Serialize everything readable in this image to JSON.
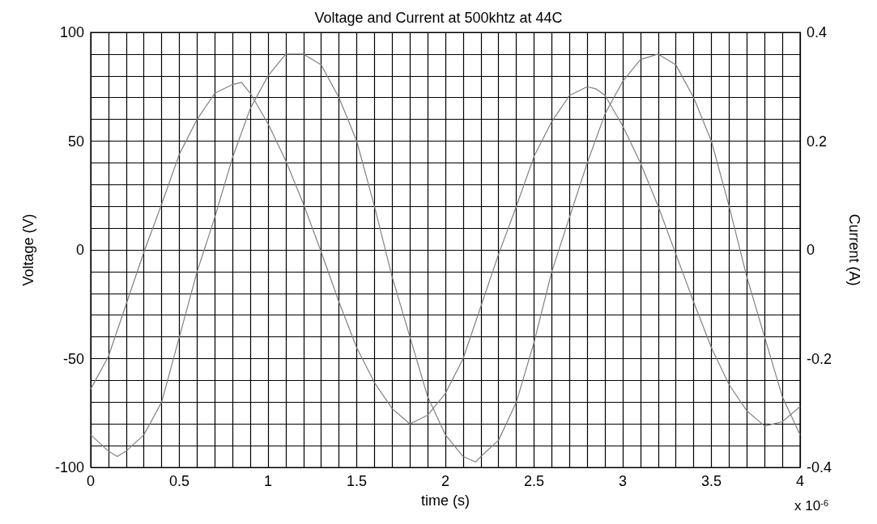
{
  "chart_data": {
    "type": "line",
    "title": "Voltage and Current at 500khtz at 44C",
    "xlabel": "time (s)",
    "ylabel": "Voltage (V)",
    "y2label": "Current (A)",
    "annotations": [
      "x 10$^{-6}$"
    ],
    "x": [
      0,
      0.1,
      0.2,
      0.3,
      0.4,
      0.5,
      0.6,
      0.7,
      0.8,
      0.85,
      0.9,
      1.0,
      1.1,
      1.2,
      1.3,
      1.4,
      1.5,
      1.6,
      1.7,
      1.8,
      1.9,
      2.0,
      2.1,
      2.2,
      2.3,
      2.4,
      2.5,
      2.6,
      2.7,
      2.8,
      2.85,
      2.9,
      3.0,
      3.1,
      3.2,
      3.3,
      3.4,
      3.5,
      3.6,
      3.7,
      3.8,
      3.9,
      4.0
    ],
    "series": [
      {
        "color": "#808080",
        "values": [
          -64,
          -49,
          -25,
          -1,
          21,
          44,
          60,
          72,
          76,
          77,
          72,
          58,
          41,
          21,
          -1,
          -24,
          -45,
          -61,
          -73,
          -80,
          -76,
          -66,
          -50,
          -26,
          -2,
          20,
          43,
          59,
          71,
          75,
          74,
          71,
          57,
          40,
          20,
          -2,
          -24,
          -45,
          -62,
          -74,
          -81,
          -79,
          -72
        ]
      },
      {
        "color": "#808080",
        "axis": "y2",
        "x": [
          0,
          0.1,
          0.15,
          0.2,
          0.3,
          0.4,
          0.5,
          0.6,
          0.7,
          0.8,
          0.9,
          1.0,
          1.1,
          1.16,
          1.2,
          1.3,
          1.4,
          1.5,
          1.6,
          1.7,
          1.8,
          1.9,
          2.0,
          2.1,
          2.17,
          2.2,
          2.3,
          2.4,
          2.5,
          2.6,
          2.7,
          2.8,
          2.9,
          3.0,
          3.1,
          3.2,
          3.3,
          3.4,
          3.5,
          3.6,
          3.7,
          3.8,
          3.9,
          4.0
        ],
        "values": [
          -0.34,
          -0.37,
          -0.38,
          -0.37,
          -0.34,
          -0.28,
          -0.16,
          -0.04,
          0.06,
          0.17,
          0.26,
          0.32,
          0.36,
          0.36,
          0.36,
          0.34,
          0.28,
          0.2,
          0.08,
          -0.05,
          -0.16,
          -0.27,
          -0.34,
          -0.38,
          -0.39,
          -0.38,
          -0.35,
          -0.28,
          -0.17,
          -0.04,
          0.06,
          0.16,
          0.25,
          0.31,
          0.35,
          0.36,
          0.34,
          0.28,
          0.2,
          0.08,
          -0.05,
          -0.16,
          -0.27,
          -0.34
        ]
      }
    ],
    "xlim": [
      0,
      4
    ],
    "xticks": [
      0,
      0.5,
      1,
      1.5,
      2,
      2.5,
      3,
      3.5,
      4
    ],
    "ylim": [
      -100,
      100
    ],
    "yticks": [
      -100,
      -50,
      0,
      50,
      100
    ],
    "y2lim": [
      -0.4,
      0.4
    ],
    "y2ticks": [
      -0.4,
      -0.2,
      0,
      0.2,
      0.4
    ],
    "grid": true,
    "marker": "none",
    "line_style": "solid"
  }
}
